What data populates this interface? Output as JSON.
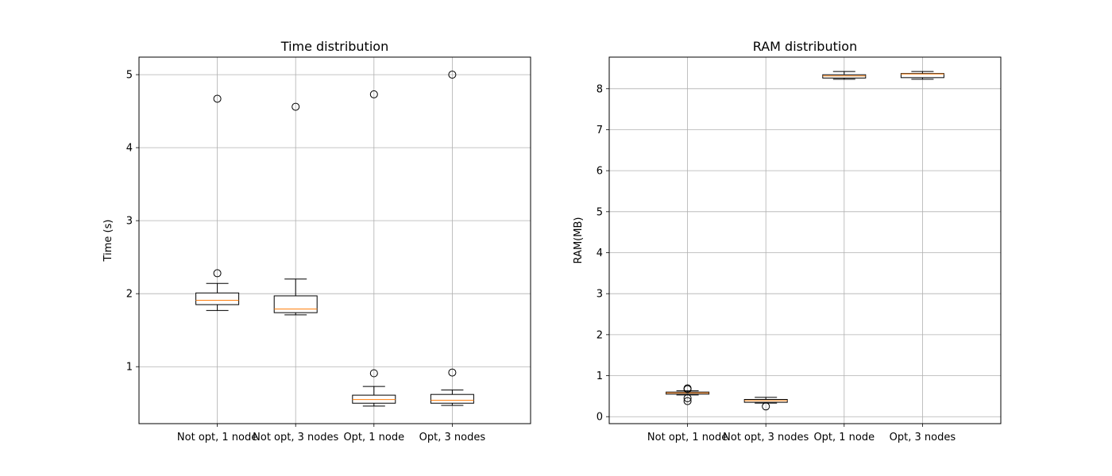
{
  "chart_data": [
    {
      "type": "box",
      "title": "Time distribution",
      "xlabel": "",
      "ylabel": "Time (s)",
      "ylim": [
        0.22,
        5.24
      ],
      "yticks": [
        1,
        2,
        3,
        4,
        5
      ],
      "grid": true,
      "categories": [
        "Not opt, 1 node",
        "Not opt, 3 nodes",
        "Opt, 1 node",
        "Opt, 3 nodes"
      ],
      "boxes": [
        {
          "whisker_low": 1.77,
          "q1": 1.85,
          "median": 1.91,
          "q3": 2.01,
          "whisker_high": 2.14,
          "outliers": [
            2.28,
            4.67
          ]
        },
        {
          "whisker_low": 1.71,
          "q1": 1.74,
          "median": 1.79,
          "q3": 1.97,
          "whisker_high": 2.2,
          "outliers": [
            4.56
          ]
        },
        {
          "whisker_low": 0.46,
          "q1": 0.5,
          "median": 0.55,
          "q3": 0.61,
          "whisker_high": 0.73,
          "outliers": [
            0.91,
            4.73
          ]
        },
        {
          "whisker_low": 0.47,
          "q1": 0.5,
          "median": 0.54,
          "q3": 0.62,
          "whisker_high": 0.68,
          "outliers": [
            0.92,
            5.0
          ]
        }
      ]
    },
    {
      "type": "box",
      "title": "RAM distribution",
      "xlabel": "",
      "ylabel": "RAM(MB)",
      "ylim": [
        -0.17,
        8.77
      ],
      "yticks": [
        0,
        1,
        2,
        3,
        4,
        5,
        6,
        7,
        8
      ],
      "grid": true,
      "categories": [
        "Not opt, 1 node",
        "Not opt, 3 nodes",
        "Opt, 1 node",
        "Opt, 3 nodes"
      ],
      "boxes": [
        {
          "whisker_low": 0.53,
          "q1": 0.55,
          "median": 0.58,
          "q3": 0.6,
          "whisker_high": 0.63,
          "outliers": [
            0.38,
            0.45,
            0.67,
            0.69
          ]
        },
        {
          "whisker_low": 0.33,
          "q1": 0.35,
          "median": 0.39,
          "q3": 0.42,
          "whisker_high": 0.47,
          "outliers": [
            0.25
          ]
        },
        {
          "whisker_low": 8.23,
          "q1": 8.26,
          "median": 8.31,
          "q3": 8.34,
          "whisker_high": 8.42,
          "outliers": []
        },
        {
          "whisker_low": 8.23,
          "q1": 8.27,
          "median": 8.36,
          "q3": 8.37,
          "whisker_high": 8.42,
          "outliers": []
        }
      ]
    }
  ]
}
